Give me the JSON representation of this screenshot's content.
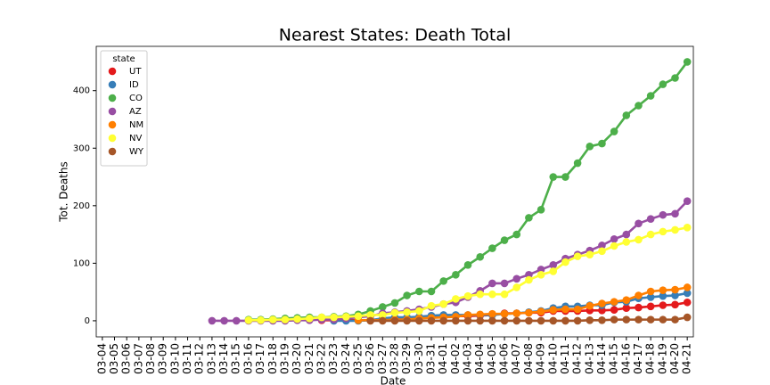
{
  "chart_data": {
    "type": "line",
    "title": "Nearest States: Death Total",
    "xlabel": "Date",
    "ylabel": "Tot. Deaths",
    "legend_title": "state",
    "legend": "upper left",
    "categories": [
      "03-04",
      "03-05",
      "03-06",
      "03-07",
      "03-08",
      "03-09",
      "03-10",
      "03-11",
      "03-12",
      "03-13",
      "03-14",
      "03-15",
      "03-16",
      "03-17",
      "03-18",
      "03-19",
      "03-20",
      "03-21",
      "03-22",
      "03-23",
      "03-24",
      "03-25",
      "03-26",
      "03-27",
      "03-28",
      "03-29",
      "03-30",
      "03-31",
      "04-01",
      "04-02",
      "04-03",
      "04-04",
      "04-05",
      "04-06",
      "04-07",
      "04-08",
      "04-09",
      "04-10",
      "04-11",
      "04-12",
      "04-13",
      "04-14",
      "04-15",
      "04-16",
      "04-17",
      "04-18",
      "04-19",
      "04-20",
      "04-21"
    ],
    "ylim": [
      -28,
      477
    ],
    "yticks": [
      0,
      100,
      200,
      300,
      400
    ],
    "series": [
      {
        "name": "UT",
        "color": "#e41a1c",
        "values": [
          null,
          null,
          null,
          null,
          null,
          null,
          null,
          null,
          null,
          null,
          null,
          null,
          null,
          null,
          null,
          null,
          null,
          null,
          1,
          1,
          1,
          1,
          1,
          2,
          2,
          5,
          5,
          7,
          7,
          8,
          8,
          9,
          10,
          13,
          13,
          14,
          14,
          17,
          17,
          17,
          18,
          18,
          19,
          22,
          23,
          25,
          27,
          28,
          32
        ]
      },
      {
        "name": "ID",
        "color": "#377eb8",
        "values": [
          null,
          null,
          null,
          null,
          null,
          null,
          null,
          null,
          null,
          null,
          null,
          null,
          null,
          null,
          null,
          null,
          null,
          null,
          null,
          0,
          0,
          0,
          1,
          4,
          6,
          6,
          7,
          9,
          10,
          10,
          10,
          10,
          10,
          12,
          13,
          15,
          17,
          22,
          25,
          25,
          27,
          27,
          32,
          33,
          39,
          41,
          43,
          44,
          48
        ]
      },
      {
        "name": "CO",
        "color": "#4daf4a",
        "values": [
          null,
          null,
          null,
          null,
          null,
          null,
          null,
          null,
          null,
          null,
          null,
          null,
          2,
          2,
          3,
          4,
          5,
          6,
          6,
          7,
          8,
          11,
          17,
          24,
          31,
          44,
          51,
          51,
          69,
          80,
          97,
          111,
          126,
          140,
          150,
          179,
          193,
          250,
          250,
          274,
          303,
          308,
          329,
          357,
          374,
          391,
          411,
          422,
          450
        ]
      },
      {
        "name": "AZ",
        "color": "#984ea3",
        "values": [
          null,
          null,
          null,
          null,
          null,
          null,
          null,
          null,
          null,
          0,
          0,
          0,
          0,
          0,
          0,
          0,
          1,
          1,
          2,
          2,
          4,
          6,
          8,
          13,
          15,
          17,
          20,
          24,
          29,
          32,
          41,
          52,
          65,
          65,
          73,
          80,
          89,
          97,
          108,
          115,
          122,
          131,
          142,
          150,
          169,
          177,
          184,
          186,
          208
        ]
      },
      {
        "name": "NM",
        "color": "#ff7f00",
        "values": [
          null,
          null,
          null,
          null,
          null,
          null,
          null,
          null,
          null,
          null,
          null,
          null,
          null,
          null,
          null,
          null,
          null,
          null,
          null,
          null,
          null,
          1,
          1,
          1,
          2,
          2,
          4,
          5,
          6,
          7,
          10,
          11,
          12,
          12,
          13,
          14,
          16,
          19,
          20,
          20,
          26,
          30,
          33,
          36,
          44,
          51,
          53,
          54,
          58
        ]
      },
      {
        "name": "NV",
        "color": "#ffff33",
        "values": [
          null,
          null,
          null,
          null,
          null,
          null,
          null,
          null,
          null,
          null,
          null,
          null,
          1,
          1,
          2,
          2,
          3,
          4,
          6,
          6,
          7,
          8,
          10,
          10,
          14,
          15,
          17,
          26,
          29,
          38,
          43,
          46,
          46,
          46,
          58,
          71,
          80,
          86,
          102,
          112,
          115,
          121,
          130,
          137,
          141,
          150,
          155,
          158,
          162
        ]
      },
      {
        "name": "WY",
        "color": "#a65628",
        "values": [
          null,
          null,
          null,
          null,
          null,
          null,
          null,
          null,
          null,
          null,
          null,
          null,
          null,
          null,
          null,
          null,
          null,
          null,
          null,
          null,
          null,
          null,
          0,
          0,
          0,
          0,
          0,
          0,
          0,
          0,
          0,
          0,
          0,
          0,
          0,
          0,
          0,
          0,
          0,
          0,
          1,
          1,
          2,
          2,
          2,
          2,
          2,
          2,
          6
        ]
      }
    ]
  }
}
